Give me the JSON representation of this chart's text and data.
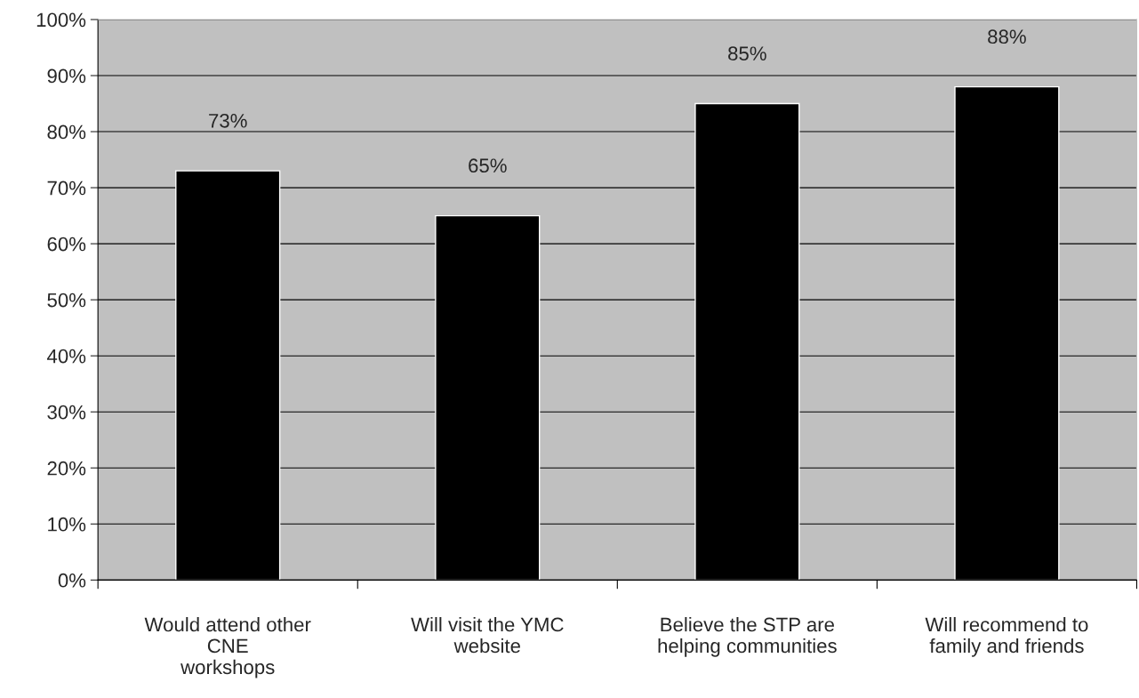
{
  "chart_data": {
    "type": "bar",
    "categories": [
      "Would attend other\nCNE\nworkshops",
      "Will visit the YMC\nwebsite",
      "Believe the STP are\nhelping communities",
      "Will recommend to\nfamily and friends"
    ],
    "values": [
      73,
      65,
      85,
      88
    ],
    "color": "#000000",
    "ylim": [
      0,
      100
    ],
    "yticks": [
      {
        "value": 0,
        "label": "0%"
      },
      {
        "value": 10,
        "label": "10%"
      },
      {
        "value": 20,
        "label": "20%"
      },
      {
        "value": 30,
        "label": "30%"
      },
      {
        "value": 40,
        "label": "40%"
      },
      {
        "value": 50,
        "label": "50%"
      },
      {
        "value": 60,
        "label": "60%"
      },
      {
        "value": 70,
        "label": "70%"
      },
      {
        "value": 80,
        "label": "80%"
      },
      {
        "value": 90,
        "label": "90%"
      },
      {
        "value": 100,
        "label": "100%"
      }
    ],
    "value_labels": [
      "73%",
      "65%",
      "85%",
      "88%"
    ],
    "grid": "y",
    "legend": false
  }
}
